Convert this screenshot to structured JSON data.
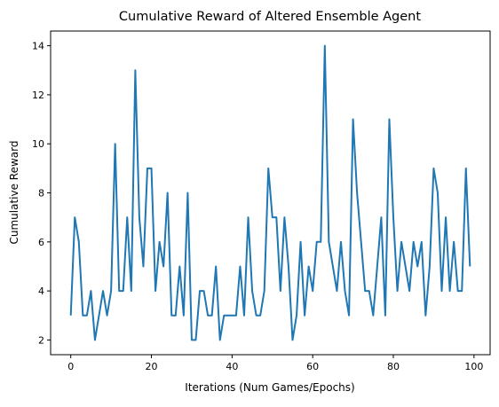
{
  "chart_data": {
    "type": "line",
    "title": "Cumulative Reward of Altered Ensemble Agent",
    "xlabel": "Iterations (Num Games/Epochs)",
    "ylabel": "Cumulative Reward",
    "xlim": [
      -5,
      104
    ],
    "ylim": [
      1.4,
      14.6
    ],
    "xticks": [
      0,
      20,
      40,
      60,
      80,
      100
    ],
    "yticks": [
      2,
      4,
      6,
      8,
      10,
      12,
      14
    ],
    "grid": false,
    "series": [
      {
        "color": "#1f77b4",
        "x": [
          0,
          1,
          2,
          3,
          4,
          5,
          6,
          7,
          8,
          9,
          10,
          11,
          12,
          13,
          14,
          15,
          16,
          17,
          18,
          19,
          20,
          21,
          22,
          23,
          24,
          25,
          26,
          27,
          28,
          29,
          30,
          31,
          32,
          33,
          34,
          35,
          36,
          37,
          38,
          39,
          40,
          41,
          42,
          43,
          44,
          45,
          46,
          47,
          48,
          49,
          50,
          51,
          52,
          53,
          54,
          55,
          56,
          57,
          58,
          59,
          60,
          61,
          62,
          63,
          64,
          65,
          66,
          67,
          68,
          69,
          70,
          71,
          72,
          73,
          74,
          75,
          76,
          77,
          78,
          79,
          80,
          81,
          82,
          83,
          84,
          85,
          86,
          87,
          88,
          89,
          90,
          91,
          92,
          93,
          94,
          95,
          96,
          97,
          98,
          99
        ],
        "values": [
          3,
          7,
          6,
          3,
          3,
          4,
          2,
          3,
          4,
          3,
          4,
          10,
          4,
          4,
          7,
          4,
          13,
          7,
          5,
          9,
          9,
          4,
          6,
          5,
          8,
          3,
          3,
          5,
          3,
          8,
          2,
          2,
          4,
          4,
          3,
          3,
          5,
          2,
          3,
          3,
          3,
          3,
          5,
          3,
          7,
          4,
          3,
          3,
          4,
          9,
          7,
          7,
          4,
          7,
          5,
          2,
          3,
          6,
          3,
          5,
          4,
          6,
          6,
          14,
          6,
          5,
          4,
          6,
          4,
          3,
          11,
          8,
          6,
          4,
          4,
          3,
          5,
          7,
          3,
          11,
          7,
          4,
          6,
          5,
          4,
          6,
          5,
          6,
          3,
          5,
          9,
          8,
          4,
          7,
          4,
          6,
          4,
          4,
          9,
          5
        ]
      }
    ]
  }
}
